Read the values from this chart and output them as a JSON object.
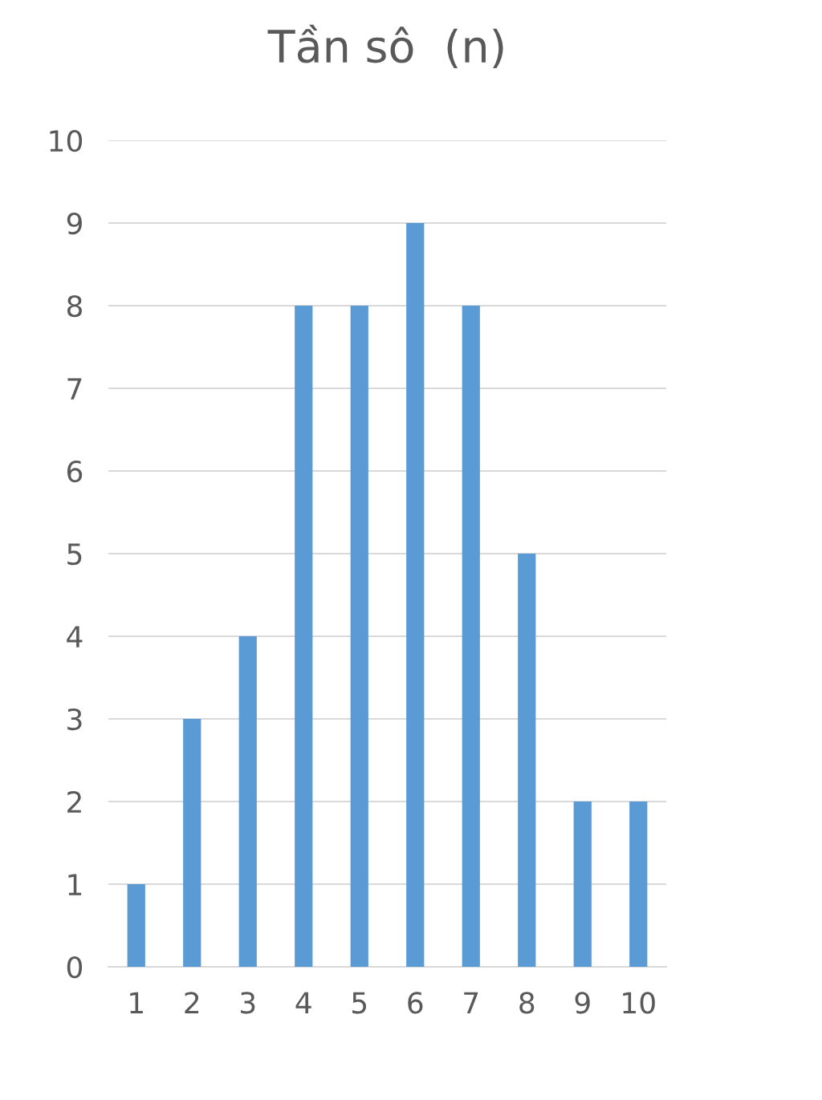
{
  "chart_data": {
    "type": "bar",
    "title": "Tần sô  (n)",
    "categories": [
      "1",
      "2",
      "3",
      "4",
      "5",
      "6",
      "7",
      "8",
      "9",
      "10"
    ],
    "values": [
      1,
      3,
      4,
      8,
      8,
      9,
      8,
      5,
      2,
      2
    ],
    "color": "#5b9bd5",
    "ylim": [
      0,
      10
    ],
    "yticks": [
      0,
      1,
      2,
      3,
      4,
      5,
      6,
      7,
      8,
      9,
      10
    ],
    "grid": "y"
  }
}
